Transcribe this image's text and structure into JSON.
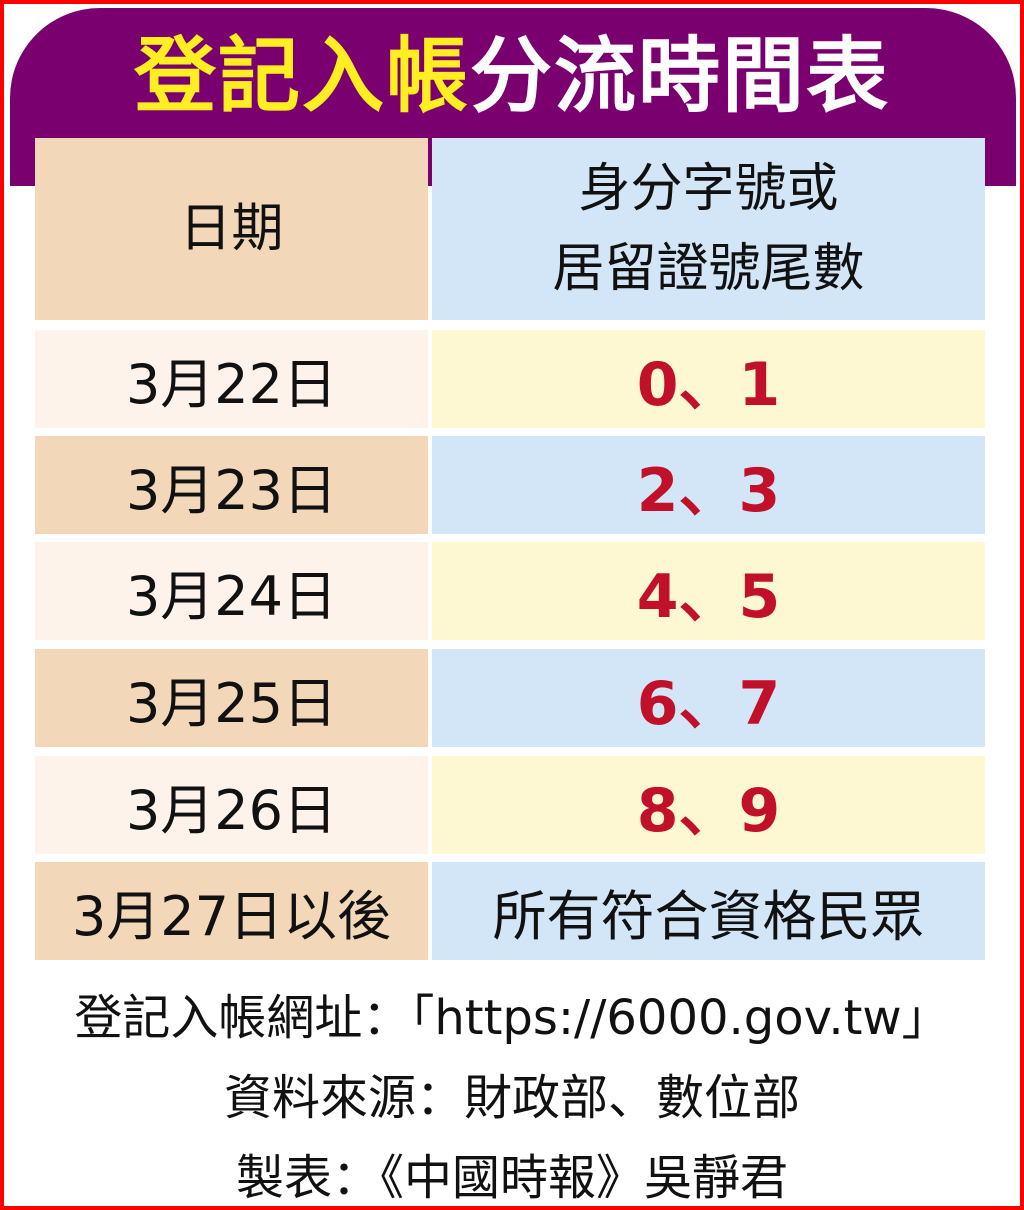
{
  "title": {
    "part1": "登記入帳",
    "part2": "分流時間表"
  },
  "header": {
    "date": "日期",
    "id_line1": "身分字號或",
    "id_line2": "居留證號尾數"
  },
  "rows": [
    {
      "date": "3月22日",
      "digits": "0、1"
    },
    {
      "date": "3月23日",
      "digits": "2、3"
    },
    {
      "date": "3月24日",
      "digits": "4、5"
    },
    {
      "date": "3月25日",
      "digits": "6、7"
    },
    {
      "date": "3月26日",
      "digits": "8、9"
    },
    {
      "date": "3月27日以後",
      "digits": "所有符合資格民眾"
    }
  ],
  "footer": {
    "url_line": "登記入帳網址：「https://6000.gov.tw」",
    "source": "資料來源：財政部、數位部",
    "credit": "製表：《中國時報》吳靜君"
  },
  "colors": {
    "banner": "#7a0070",
    "title_highlight": "#ffee22",
    "digits": "#c0102a",
    "border": "#ff0000"
  }
}
